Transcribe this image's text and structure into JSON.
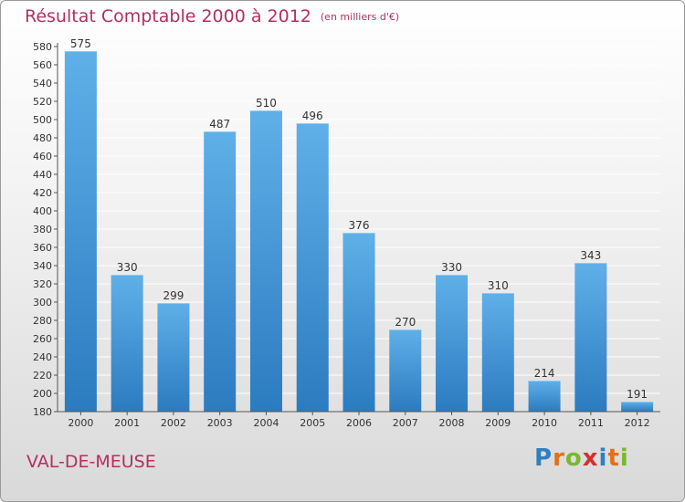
{
  "title": "Résultat Comptable 2000 à 2012",
  "title_note": "(en milliers d'€)",
  "commune": "VAL-DE-MEUSE",
  "logo_text": "Proxiti",
  "logo_letters": [
    {
      "char": "P",
      "color": "#2f7fc1"
    },
    {
      "char": "r",
      "color": "#e0701a"
    },
    {
      "char": "o",
      "color": "#7bb72c"
    },
    {
      "char": "x",
      "color": "#d32f2f"
    },
    {
      "char": "i",
      "color": "#2f7fc1"
    },
    {
      "char": "t",
      "color": "#e0701a"
    },
    {
      "char": "i",
      "color": "#7bb72c"
    }
  ],
  "colors": {
    "title": "#b3305f",
    "bar_top": "#5fb0e8",
    "bar_bottom": "#2b7bc0",
    "grid": "#ffffff",
    "axis": "#555555",
    "label": "#333333"
  },
  "chart_data": {
    "type": "bar",
    "title": "Résultat Comptable 2000 à 2012 (en milliers d'€)",
    "categories": [
      "2000",
      "2001",
      "2002",
      "2003",
      "2004",
      "2005",
      "2006",
      "2007",
      "2008",
      "2009",
      "2010",
      "2011",
      "2012"
    ],
    "values": [
      575,
      330,
      299,
      487,
      510,
      496,
      376,
      270,
      330,
      310,
      214,
      343,
      191
    ],
    "xlabel": "",
    "ylabel": "",
    "ylim": [
      180,
      580
    ],
    "ytick_step": 20,
    "yticks": [
      "180",
      "200",
      "220",
      "240",
      "260",
      "280",
      "300",
      "320",
      "340",
      "360",
      "380",
      "400",
      "420",
      "440",
      "460",
      "480",
      "500",
      "520",
      "540",
      "560",
      "580"
    ],
    "grid": true,
    "data_labels": true
  }
}
